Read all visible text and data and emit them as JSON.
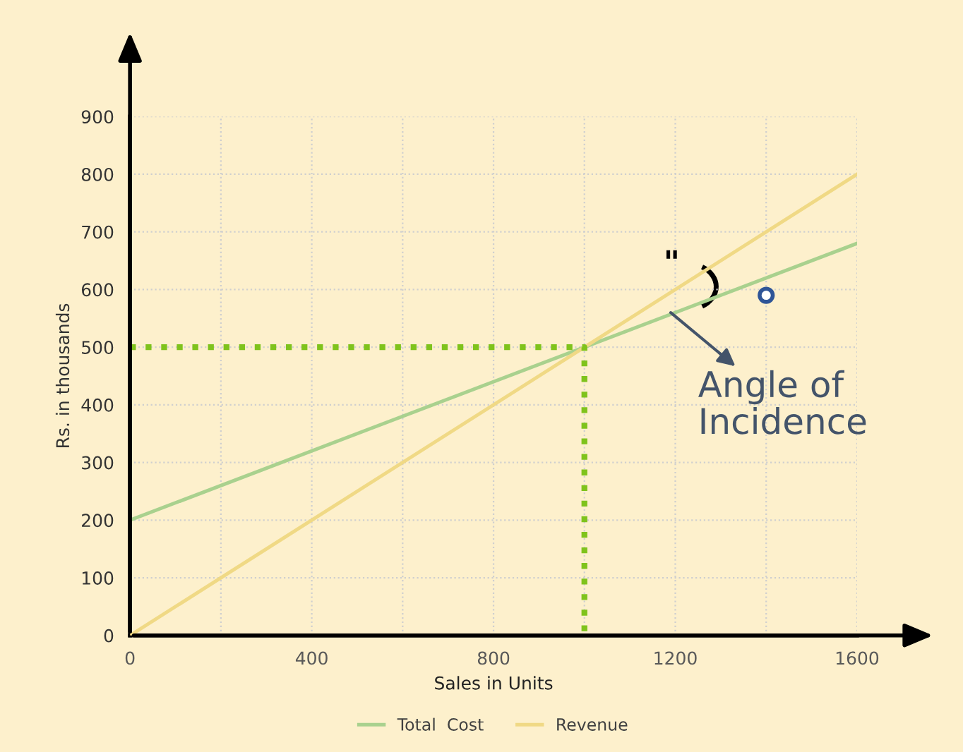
{
  "chart_data": {
    "type": "line",
    "xlabel": "Sales in Units",
    "ylabel": "Rs. in thousands",
    "xlim": [
      0,
      1600
    ],
    "ylim": [
      0,
      900
    ],
    "xticks": [
      0,
      {
        "value": 200,
        "label": null
      },
      400,
      {
        "value": 600,
        "label": null
      },
      800,
      {
        "value": 1000,
        "label": null
      },
      1200,
      {
        "value": 1400,
        "label": null
      },
      1600
    ],
    "yticks": [
      0,
      100,
      200,
      300,
      400,
      500,
      600,
      700,
      800,
      900
    ],
    "grid": true,
    "legend": "bottom",
    "marker": "none",
    "line_style": "solid",
    "series": [
      {
        "name": "Total  Cost",
        "color": "#a9d18e",
        "x": [
          0,
          1600
        ],
        "values": [
          200,
          680
        ]
      },
      {
        "name": "Revenue",
        "color": "#f0d985",
        "x": [
          0,
          1600
        ],
        "values": [
          0,
          800
        ]
      },
      {
        "color": "#7fc31c",
        "x": [
          0,
          1000,
          1000
        ],
        "values": [
          500,
          500,
          0
        ],
        "line_style": "dotted"
      },
      {
        "type": "scatter",
        "color": "#2f5597",
        "x": [
          1400
        ],
        "values": [
          590
        ],
        "marker": "circle"
      }
    ],
    "annotations": [
      {
        "text": "Angle of\nIncidence",
        "x": 1190,
        "y": 560
      },
      "\""
    ]
  }
}
